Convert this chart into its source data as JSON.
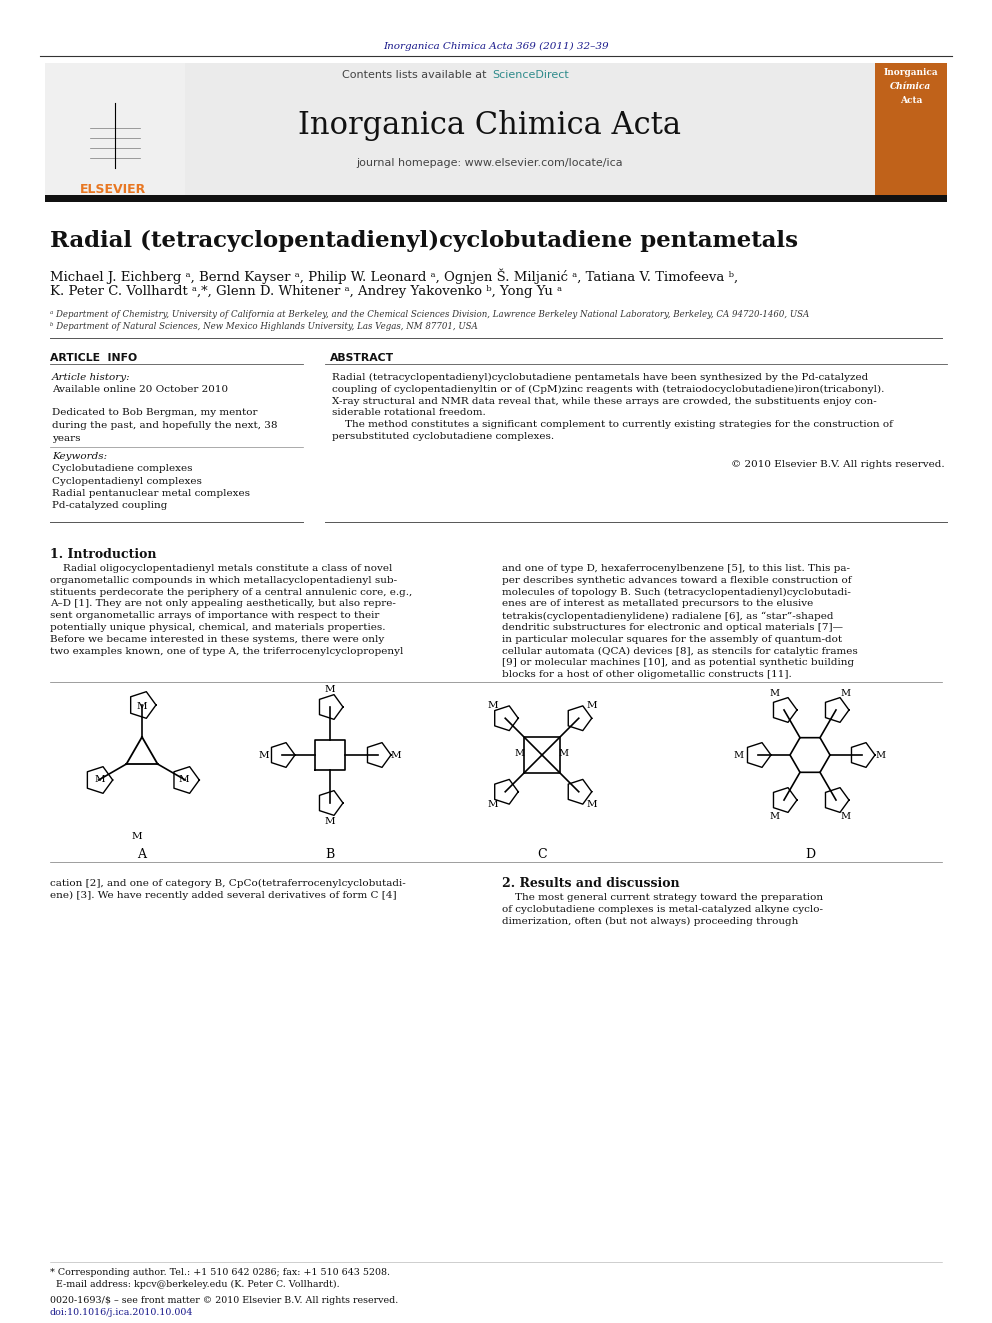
{
  "page_bg": "#ffffff",
  "header_journal_ref": "Inorganica Chimica Acta 369 (2011) 32–39",
  "header_journal_ref_color": "#1a1a8c",
  "journal_name": "Inorganica Chimica Acta",
  "journal_homepage": "journal homepage: www.elsevier.com/locate/ica",
  "contents_line": "Contents lists available at ",
  "sciencedirect": "ScienceDirect",
  "article_title": "Radial (tetracyclopentadienyl)cyclobutadiene pentametals",
  "authors_line1": "Michael J. Eichberg ᵃ, Bernd Kayser ᵃ, Philip W. Leonard ᵃ, Ognjen Š. Miljanić ᵃ, Tatiana V. Timofeeva ᵇ,",
  "authors_line2": "K. Peter C. Vollhardt ᵃ,*, Glenn D. Whitener ᵃ, Andrey Yakovenko ᵇ, Yong Yu ᵃ",
  "affil_a": "ᵃ Department of Chemistry, University of California at Berkeley, and the Chemical Sciences Division, Lawrence Berkeley National Laboratory, Berkeley, CA 94720-1460, USA",
  "affil_b": "ᵇ Department of Natural Sciences, New Mexico Highlands University, Las Vegas, NM 87701, USA",
  "section_article_info": "ARTICLE  INFO",
  "section_abstract": "ABSTRACT",
  "article_history_label": "Article history:",
  "article_history_date": "Available online 20 October 2010",
  "dedication_lines": [
    "Dedicated to Bob Bergman, my mentor",
    "during the past, and hopefully the next, 38",
    "years"
  ],
  "keywords_label": "Keywords:",
  "keywords": [
    "Cyclobutadiene complexes",
    "Cyclopentadienyl complexes",
    "Radial pentanuclear metal complexes",
    "Pd-catalyzed coupling"
  ],
  "abs_lines": [
    "Radial (tetracyclopentadienyl)cyclobutadiene pentametals have been synthesized by the Pd-catalyzed",
    "coupling of cyclopentadienyltin or of (CpM)zinc reagents with (tetraiodocyclobutadiene)iron(tricabonyl).",
    "X-ray structural and NMR data reveal that, while these arrays are crowded, the substituents enjoy con-",
    "siderable rotational freedom."
  ],
  "abs_lines2": [
    "    The method constitutes a significant complement to currently existing strategies for the construction of",
    "persubstituted cyclobutadiene complexes."
  ],
  "copyright": "© 2010 Elsevier B.V. All rights reserved.",
  "intro_heading": "1. Introduction",
  "intro_col1": [
    "    Radial oligocyclopentadienyl metals constitute a class of novel",
    "organometallic compounds in which metallacyclopentadienyl sub-",
    "stituents perdecorate the periphery of a central annulenic core, e.g.,",
    "A–D [1]. They are not only appealing aesthetically, but also repre-",
    "sent organometallic arrays of importance with respect to their",
    "potentially unique physical, chemical, and materials properties.",
    "Before we became interested in these systems, there were only",
    "two examples known, one of type A, the triferrocenylcyclopropenyl"
  ],
  "intro_col2": [
    "and one of type D, hexaferrocenylbenzene [5], to this list. This pa-",
    "per describes synthetic advances toward a flexible construction of",
    "molecules of topology B. Such (tetracyclopentadienyl)cyclobutadi-",
    "enes are of interest as metallated precursors to the elusive",
    "tetrakis(cyclopentadienylidene) radialene [6], as “star”-shaped",
    "dendritic substructures for electronic and optical materials [7]—",
    "in particular molecular squares for the assembly of quantum-dot",
    "cellular automata (QCA) devices [8], as stencils for catalytic frames",
    "[9] or molecular machines [10], and as potential synthetic building",
    "blocks for a host of other oligometallic constructs [11]."
  ],
  "figures_label_A": "A",
  "figures_label_B": "B",
  "figures_label_C": "C",
  "figures_label_D": "D",
  "body_col1": [
    "cation [2], and one of category B, CpCo(tetraferrocenylcyclobutadi-",
    "ene) [3]. We have recently added several derivatives of form C [4]"
  ],
  "results_heading": "2. Results and discussion",
  "results_lines": [
    "    The most general current strategy toward the preparation",
    "of cyclobutadiene complexes is metal-catalyzed alkyne cyclo-",
    "dimerization, often (but not always) proceeding through"
  ],
  "footer_line1": "* Corresponding author. Tel.: +1 510 642 0286; fax: +1 510 643 5208.",
  "footer_line2": "  E-mail address: kpcv@berkeley.edu (K. Peter C. Vollhardt).",
  "footer_issn": "0020-1693/$ – see front matter © 2010 Elsevier B.V. All rights reserved.",
  "footer_doi": "doi:10.1016/j.ica.2010.10.004"
}
